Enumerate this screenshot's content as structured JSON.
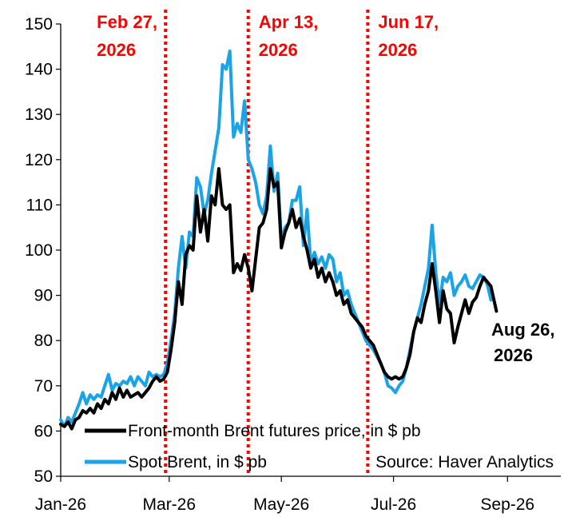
{
  "chart_data": {
    "type": "line",
    "ylim": [
      50,
      150
    ],
    "yticks": [
      50,
      60,
      70,
      80,
      90,
      100,
      110,
      120,
      130,
      140,
      150
    ],
    "xlim": [
      "2026-01-01",
      "2026-09-30"
    ],
    "xticks": [
      {
        "date": "2026-01-01",
        "label": "Jan-26"
      },
      {
        "date": "2026-03-01",
        "label": "Mar-26"
      },
      {
        "date": "2026-05-01",
        "label": "May-26"
      },
      {
        "date": "2026-07-01",
        "label": "Jul-26"
      },
      {
        "date": "2026-09-01",
        "label": "Sep-26"
      }
    ],
    "grid": false,
    "series": [
      {
        "name": "Front-month Brent futures price, in $ pb",
        "color": "#000000",
        "points": [
          [
            "2026-01-01",
            61.5
          ],
          [
            "2026-01-03",
            61.0
          ],
          [
            "2026-01-05",
            62.0
          ],
          [
            "2026-01-07",
            60.5
          ],
          [
            "2026-01-09",
            62.5
          ],
          [
            "2026-01-11",
            63.0
          ],
          [
            "2026-01-13",
            64.5
          ],
          [
            "2026-01-15",
            64.0
          ],
          [
            "2026-01-17",
            65.0
          ],
          [
            "2026-01-19",
            64.0
          ],
          [
            "2026-01-21",
            66.0
          ],
          [
            "2026-01-23",
            65.0
          ],
          [
            "2026-01-25",
            67.0
          ],
          [
            "2026-01-27",
            66.0
          ],
          [
            "2026-01-29",
            68.5
          ],
          [
            "2026-01-31",
            67.0
          ],
          [
            "2026-02-02",
            69.5
          ],
          [
            "2026-02-04",
            67.5
          ],
          [
            "2026-02-06",
            69.0
          ],
          [
            "2026-02-08",
            67.5
          ],
          [
            "2026-02-10",
            68.0
          ],
          [
            "2026-02-12",
            68.5
          ],
          [
            "2026-02-14",
            67.5
          ],
          [
            "2026-02-16",
            68.5
          ],
          [
            "2026-02-18",
            69.5
          ],
          [
            "2026-02-20",
            71.0
          ],
          [
            "2026-02-22",
            72.0
          ],
          [
            "2026-02-24",
            71.0
          ],
          [
            "2026-02-26",
            71.5
          ],
          [
            "2026-02-28",
            73.0
          ],
          [
            "2026-03-02",
            78.0
          ],
          [
            "2026-03-04",
            84.0
          ],
          [
            "2026-03-06",
            93.0
          ],
          [
            "2026-03-08",
            88.0
          ],
          [
            "2026-03-10",
            99.0
          ],
          [
            "2026-03-12",
            101.0
          ],
          [
            "2026-03-14",
            100.0
          ],
          [
            "2026-03-16",
            112.0
          ],
          [
            "2026-03-18",
            104.0
          ],
          [
            "2026-03-20",
            109.0
          ],
          [
            "2026-03-22",
            102.0
          ],
          [
            "2026-03-24",
            112.0
          ],
          [
            "2026-03-26",
            110.0
          ],
          [
            "2026-03-28",
            118.0
          ],
          [
            "2026-03-30",
            110.0
          ],
          [
            "2026-04-01",
            109.0
          ],
          [
            "2026-04-03",
            110.0
          ],
          [
            "2026-04-05",
            95.0
          ],
          [
            "2026-04-07",
            97.0
          ],
          [
            "2026-04-09",
            95.5
          ],
          [
            "2026-04-11",
            99.0
          ],
          [
            "2026-04-13",
            96.0
          ],
          [
            "2026-04-15",
            91.0
          ],
          [
            "2026-04-17",
            98.0
          ],
          [
            "2026-04-19",
            105.0
          ],
          [
            "2026-04-21",
            106.0
          ],
          [
            "2026-04-23",
            109.0
          ],
          [
            "2026-04-25",
            118.0
          ],
          [
            "2026-04-27",
            114.0
          ],
          [
            "2026-04-29",
            115.0
          ],
          [
            "2026-05-01",
            100.5
          ],
          [
            "2026-05-03",
            104.0
          ],
          [
            "2026-05-05",
            106.0
          ],
          [
            "2026-05-07",
            109.0
          ],
          [
            "2026-05-09",
            105.0
          ],
          [
            "2026-05-11",
            107.0
          ],
          [
            "2026-05-13",
            103.0
          ],
          [
            "2026-05-15",
            100.0
          ],
          [
            "2026-05-17",
            96.0
          ],
          [
            "2026-05-19",
            98.0
          ],
          [
            "2026-05-21",
            94.0
          ],
          [
            "2026-05-23",
            96.0
          ],
          [
            "2026-05-25",
            93.0
          ],
          [
            "2026-05-27",
            95.0
          ],
          [
            "2026-05-29",
            93.0
          ],
          [
            "2026-05-31",
            90.0
          ],
          [
            "2026-06-02",
            91.0
          ],
          [
            "2026-06-04",
            88.0
          ],
          [
            "2026-06-06",
            89.0
          ],
          [
            "2026-06-08",
            86.0
          ],
          [
            "2026-06-10",
            85.0
          ],
          [
            "2026-06-12",
            84.0
          ],
          [
            "2026-06-14",
            83.0
          ],
          [
            "2026-06-16",
            81.0
          ],
          [
            "2026-06-18",
            80.0
          ],
          [
            "2026-06-20",
            79.0
          ],
          [
            "2026-06-22",
            77.0
          ],
          [
            "2026-06-24",
            75.0
          ],
          [
            "2026-06-26",
            73.0
          ],
          [
            "2026-06-28",
            72.0
          ],
          [
            "2026-06-30",
            71.5
          ],
          [
            "2026-07-02",
            72.0
          ],
          [
            "2026-07-04",
            71.5
          ],
          [
            "2026-07-06",
            72.0
          ],
          [
            "2026-07-08",
            74.0
          ],
          [
            "2026-07-10",
            77.0
          ],
          [
            "2026-07-12",
            82.0
          ],
          [
            "2026-07-14",
            85.0
          ],
          [
            "2026-07-16",
            84.0
          ],
          [
            "2026-07-18",
            88.0
          ],
          [
            "2026-07-20",
            91.0
          ],
          [
            "2026-07-22",
            97.0
          ],
          [
            "2026-07-24",
            91.0
          ],
          [
            "2026-07-26",
            84.0
          ],
          [
            "2026-07-28",
            91.0
          ],
          [
            "2026-07-30",
            87.0
          ],
          [
            "2026-08-01",
            86.0
          ],
          [
            "2026-08-03",
            79.5
          ],
          [
            "2026-08-05",
            83.0
          ],
          [
            "2026-08-07",
            86.0
          ],
          [
            "2026-08-09",
            89.0
          ],
          [
            "2026-08-11",
            86.0
          ],
          [
            "2026-08-13",
            88.5
          ],
          [
            "2026-08-15",
            89.5
          ],
          [
            "2026-08-17",
            92.0
          ],
          [
            "2026-08-19",
            94.0
          ],
          [
            "2026-08-21",
            93.0
          ],
          [
            "2026-08-23",
            92.0
          ],
          [
            "2026-08-26",
            86.5
          ]
        ]
      },
      {
        "name": "Spot Brent, in $ pb",
        "color": "#1aa3e6",
        "points": [
          [
            "2026-01-01",
            62.5
          ],
          [
            "2026-01-03",
            61.0
          ],
          [
            "2026-01-05",
            63.0
          ],
          [
            "2026-01-07",
            62.0
          ],
          [
            "2026-01-09",
            64.0
          ],
          [
            "2026-01-11",
            66.0
          ],
          [
            "2026-01-13",
            68.5
          ],
          [
            "2026-01-15",
            66.0
          ],
          [
            "2026-01-17",
            68.0
          ],
          [
            "2026-01-19",
            67.0
          ],
          [
            "2026-01-21",
            68.0
          ],
          [
            "2026-01-23",
            67.5
          ],
          [
            "2026-01-25",
            70.0
          ],
          [
            "2026-01-27",
            72.5
          ],
          [
            "2026-01-29",
            69.0
          ],
          [
            "2026-01-31",
            70.5
          ],
          [
            "2026-02-02",
            70.0
          ],
          [
            "2026-02-04",
            71.0
          ],
          [
            "2026-02-06",
            70.5
          ],
          [
            "2026-02-08",
            72.0
          ],
          [
            "2026-02-10",
            70.0
          ],
          [
            "2026-02-12",
            72.0
          ],
          [
            "2026-02-14",
            71.0
          ],
          [
            "2026-02-16",
            70.0
          ],
          [
            "2026-02-18",
            73.0
          ],
          [
            "2026-02-20",
            72.0
          ],
          [
            "2026-02-22",
            72.5
          ],
          [
            "2026-02-24",
            72.0
          ],
          [
            "2026-02-26",
            72.5
          ],
          [
            "2026-02-28",
            75.0
          ],
          [
            "2026-03-02",
            80.0
          ],
          [
            "2026-03-04",
            86.0
          ],
          [
            "2026-03-06",
            96.0
          ],
          [
            "2026-03-08",
            103.0
          ],
          [
            "2026-03-10",
            96.0
          ],
          [
            "2026-03-12",
            104.0
          ],
          [
            "2026-03-14",
            103.0
          ],
          [
            "2026-03-16",
            116.0
          ],
          [
            "2026-03-18",
            114.0
          ],
          [
            "2026-03-20",
            108.0
          ],
          [
            "2026-03-22",
            111.0
          ],
          [
            "2026-03-24",
            117.0
          ],
          [
            "2026-03-26",
            122.0
          ],
          [
            "2026-03-28",
            127.0
          ],
          [
            "2026-03-30",
            141.0
          ],
          [
            "2026-04-01",
            140.0
          ],
          [
            "2026-04-03",
            144.0
          ],
          [
            "2026-04-05",
            125.0
          ],
          [
            "2026-04-07",
            128.0
          ],
          [
            "2026-04-09",
            126.0
          ],
          [
            "2026-04-11",
            133.0
          ],
          [
            "2026-04-13",
            120.0
          ],
          [
            "2026-04-15",
            118.0
          ],
          [
            "2026-04-17",
            115.0
          ],
          [
            "2026-04-19",
            110.0
          ],
          [
            "2026-04-21",
            108.0
          ],
          [
            "2026-04-23",
            112.0
          ],
          [
            "2026-04-25",
            123.0
          ],
          [
            "2026-04-27",
            113.0
          ],
          [
            "2026-04-29",
            117.0
          ],
          [
            "2026-05-01",
            102.0
          ],
          [
            "2026-05-03",
            105.0
          ],
          [
            "2026-05-05",
            106.0
          ],
          [
            "2026-05-07",
            111.0
          ],
          [
            "2026-05-09",
            111.0
          ],
          [
            "2026-05-11",
            114.0
          ],
          [
            "2026-05-13",
            101.0
          ],
          [
            "2026-05-15",
            109.0
          ],
          [
            "2026-05-17",
            97.0
          ],
          [
            "2026-05-19",
            99.5
          ],
          [
            "2026-05-21",
            97.0
          ],
          [
            "2026-05-23",
            98.5
          ],
          [
            "2026-05-25",
            96.0
          ],
          [
            "2026-05-27",
            99.0
          ],
          [
            "2026-05-29",
            98.0
          ],
          [
            "2026-05-31",
            93.0
          ],
          [
            "2026-06-02",
            95.0
          ],
          [
            "2026-06-04",
            90.0
          ],
          [
            "2026-06-06",
            91.0
          ],
          [
            "2026-06-08",
            88.0
          ],
          [
            "2026-06-10",
            86.0
          ],
          [
            "2026-06-12",
            84.0
          ],
          [
            "2026-06-14",
            82.0
          ],
          [
            "2026-06-16",
            80.0
          ],
          [
            "2026-06-18",
            79.0
          ],
          [
            "2026-06-20",
            78.0
          ],
          [
            "2026-06-22",
            76.5
          ],
          [
            "2026-06-24",
            75.0
          ],
          [
            "2026-06-26",
            73.0
          ],
          [
            "2026-06-28",
            70.0
          ],
          [
            "2026-06-30",
            69.5
          ],
          [
            "2026-07-02",
            68.5
          ],
          [
            "2026-07-04",
            70.0
          ],
          [
            "2026-07-06",
            71.0
          ],
          [
            "2026-07-08",
            74.0
          ],
          [
            "2026-07-10",
            78.0
          ],
          [
            "2026-07-12",
            82.0
          ],
          [
            "2026-07-14",
            85.0
          ],
          [
            "2026-07-16",
            88.0
          ],
          [
            "2026-07-18",
            92.0
          ],
          [
            "2026-07-20",
            96.0
          ],
          [
            "2026-07-22",
            105.5
          ],
          [
            "2026-07-24",
            95.0
          ],
          [
            "2026-07-26",
            88.0
          ],
          [
            "2026-07-28",
            94.0
          ],
          [
            "2026-07-30",
            93.0
          ],
          [
            "2026-08-01",
            95.0
          ],
          [
            "2026-08-03",
            90.0
          ],
          [
            "2026-08-05",
            92.0
          ],
          [
            "2026-08-07",
            93.0
          ],
          [
            "2026-08-09",
            94.5
          ],
          [
            "2026-08-11",
            92.0
          ],
          [
            "2026-08-13",
            91.5
          ],
          [
            "2026-08-15",
            93.0
          ],
          [
            "2026-08-17",
            94.5
          ],
          [
            "2026-08-19",
            94.0
          ],
          [
            "2026-08-21",
            92.5
          ],
          [
            "2026-08-23",
            89.0
          ]
        ]
      }
    ],
    "vlines": [
      {
        "date": "2026-02-27",
        "label_line1": "Feb 27,",
        "label_line2": "2026",
        "color": "#ff0000"
      },
      {
        "date": "2026-04-13",
        "label_line1": "Apr 13,",
        "label_line2": "2026",
        "color": "#ff0000"
      },
      {
        "date": "2026-06-17",
        "label_line1": "Jun 17,",
        "label_line2": "2026",
        "color": "#ff0000"
      }
    ],
    "end_annotation": {
      "line1": "Aug 26,",
      "line2": "2026"
    },
    "source": "Source: Haver Analytics",
    "legend_placement": "bottom"
  }
}
